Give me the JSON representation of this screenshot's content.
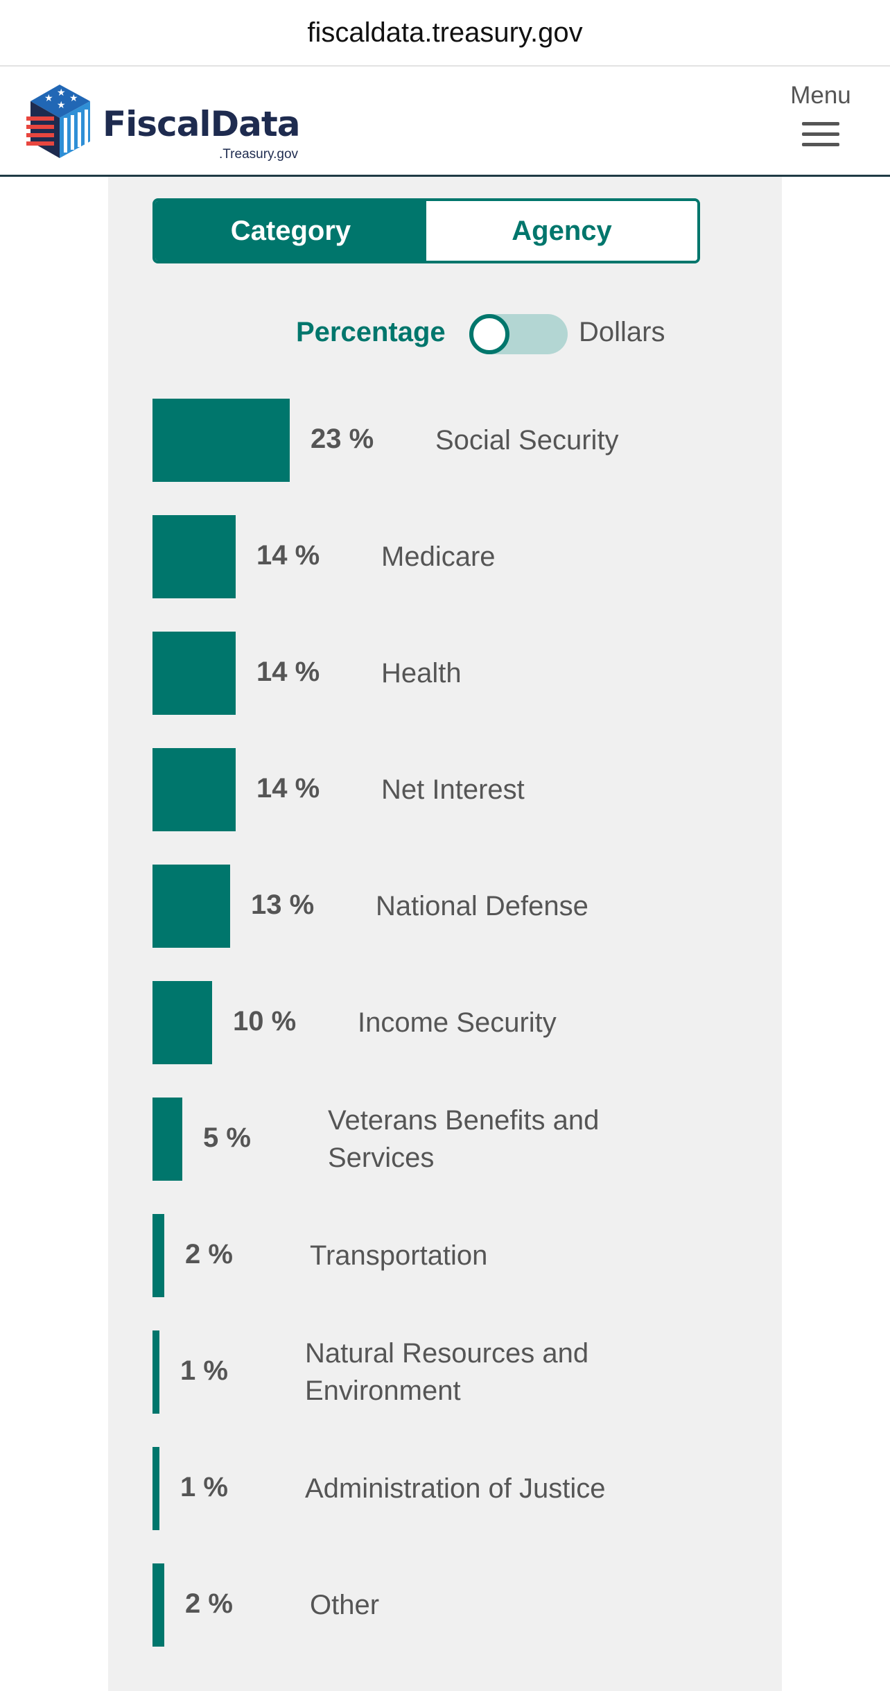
{
  "browser": {
    "url": "fiscaldata.treasury.gov"
  },
  "header": {
    "logo_name": "FiscalData",
    "logo_sub": ".Treasury.gov",
    "menu_label": "Menu"
  },
  "tabs": [
    {
      "label": "Category",
      "active": true
    },
    {
      "label": "Agency",
      "active": false
    }
  ],
  "toggle": {
    "left_label": "Percentage",
    "right_label": "Dollars",
    "selected": "Percentage"
  },
  "colors": {
    "accent": "#00766c",
    "panel": "#f0f0f0",
    "text": "#555555",
    "brand_navy": "#1e2b4f",
    "brand_red": "#e8463f"
  },
  "chart_data": {
    "type": "bar",
    "orientation": "horizontal",
    "unit": "%",
    "categories": [
      "Social Security",
      "Medicare",
      "Health",
      "Net Interest",
      "National Defense",
      "Income Security",
      "Veterans Benefits and Services",
      "Transportation",
      "Natural Resources and Environment",
      "Administration of Justice",
      "Other"
    ],
    "values": [
      23,
      14,
      14,
      14,
      13,
      10,
      5,
      2,
      1,
      1,
      2
    ],
    "value_labels": [
      "23 %",
      "14 %",
      "14 %",
      "14 %",
      "13 %",
      "10 %",
      "5 %",
      "2 %",
      "1 %",
      "1 %",
      "2 %"
    ],
    "title": "",
    "xlabel": "",
    "ylabel": "",
    "grid": false
  }
}
